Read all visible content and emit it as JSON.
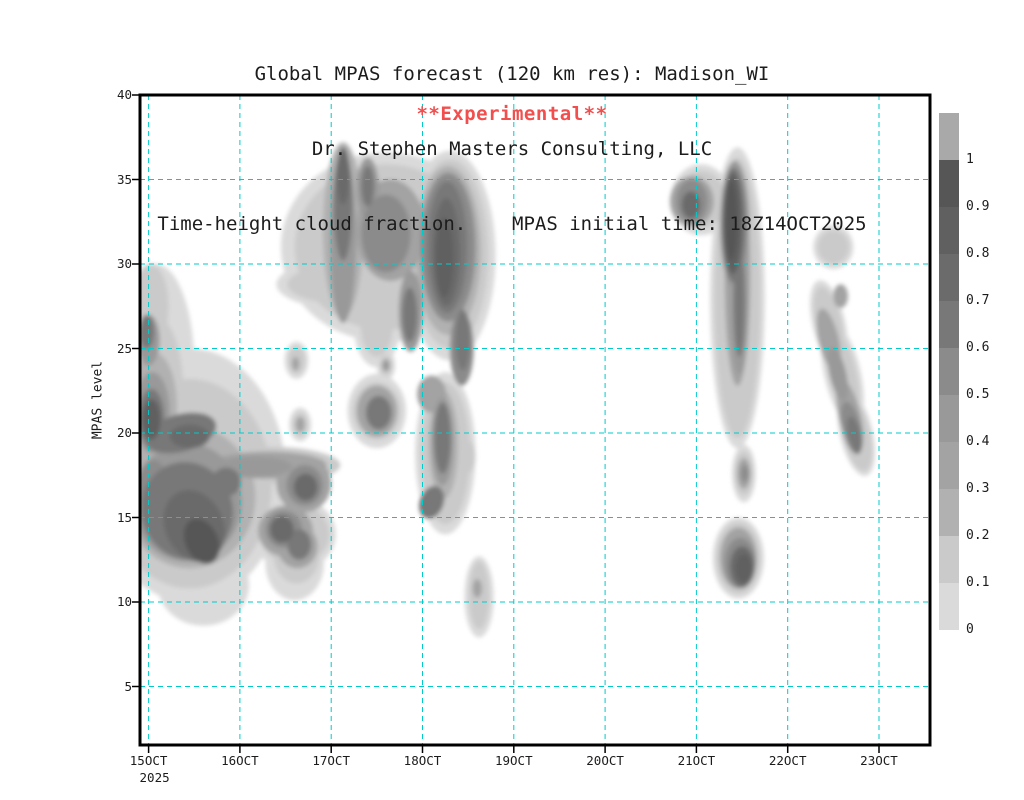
{
  "header": {
    "line1": "Global MPAS forecast (120 km res): Madison_WI",
    "line2": "Dr. Stephen Masters Consulting, LLC",
    "line3": "Time-height cloud fraction.    MPAS initial time: 18Z14OCT2025"
  },
  "annotation": {
    "text": "**Experimental**",
    "color": "#f24e4e"
  },
  "axes": {
    "y_label": "MPAS level",
    "y_ticks": [
      40,
      35,
      30,
      25,
      20,
      15,
      10,
      5
    ],
    "x_ticks": [
      "15OCT",
      "16OCT",
      "17OCT",
      "18OCT",
      "19OCT",
      "20OCT",
      "21OCT",
      "22OCT",
      "23OCT"
    ],
    "x_year": "2025",
    "grid_color": "#00cbcb",
    "frame_color": "#000000",
    "text_color": "#1c1c1c"
  },
  "colorbar": {
    "labels": [
      "0",
      "0.1",
      "0.2",
      "0.3",
      "0.4",
      "0.5",
      "0.6",
      "0.7",
      "0.8",
      "0.9",
      "1"
    ],
    "segment_colors": [
      "#dadada",
      "#cacaca",
      "#b1b1b1",
      "#a3a3a3",
      "#999999",
      "#8b8b8b",
      "#787878",
      "#6b6b6b",
      "#606060",
      "#565656",
      "#a9a9a9"
    ]
  },
  "chart_data": {
    "type": "heatmap",
    "quantity": "cloud fraction",
    "title": "Global MPAS forecast (120 km res): Madison_WI",
    "ylabel": "MPAS level",
    "ylim": [
      1.5,
      40
    ],
    "xlim_days_since_15OCT": [
      -0.1,
      8.56
    ],
    "contour_levels": [
      0,
      0.1,
      0.2,
      0.3,
      0.4,
      0.5,
      0.6,
      0.7,
      0.8,
      0.9,
      1
    ],
    "feature_format": [
      "t_days_since_15OCT00Z",
      "mpas_level",
      "radius_t_days",
      "radius_levels",
      "cloud_fraction",
      "rotation_deg"
    ],
    "features": [
      [
        0.45,
        17.5,
        1.05,
        7.5,
        0.05
      ],
      [
        0.08,
        24,
        0.42,
        6,
        0.05
      ],
      [
        0.6,
        11,
        0.5,
        2.4,
        0.05
      ],
      [
        1.6,
        14,
        0.45,
        2.2,
        0.05
      ],
      [
        1.6,
        12.3,
        0.32,
        2.2,
        0.05
      ],
      [
        1.62,
        24.3,
        0.13,
        1.1,
        0.05
      ],
      [
        1.66,
        20.5,
        0.12,
        1,
        0.05
      ],
      [
        2.2,
        28.8,
        0.8,
        1.5,
        0.05
      ],
      [
        2.5,
        26.3,
        0.25,
        2.4,
        0.05
      ],
      [
        2.6,
        31,
        1.15,
        5.6,
        0.05
      ],
      [
        3.3,
        30.5,
        0.5,
        6.2,
        0.05
      ],
      [
        3.25,
        18.8,
        0.33,
        4.8,
        0.05
      ],
      [
        3.62,
        10.3,
        0.16,
        2.4,
        0.05
      ],
      [
        2.6,
        24,
        0.1,
        0.9,
        0.05
      ],
      [
        2.5,
        21.3,
        0.32,
        2.2,
        0.05
      ],
      [
        6.45,
        28,
        0.3,
        8.9,
        0.05
      ],
      [
        6.05,
        33.8,
        0.33,
        2.1,
        0.05
      ],
      [
        6.52,
        17.6,
        0.13,
        1.7,
        0.05
      ],
      [
        6.46,
        12.6,
        0.28,
        2.4,
        0.05
      ],
      [
        7.5,
        31,
        0.22,
        1.3,
        0.05
      ],
      [
        7.45,
        26.5,
        0.18,
        2.6,
        0.05,
        -13
      ],
      [
        7.6,
        23.5,
        0.2,
        3.2,
        0.05,
        -13
      ],
      [
        7.75,
        20,
        0.18,
        2.6,
        0.05,
        -13
      ],
      [
        0.45,
        17,
        0.9,
        6.2,
        0.13
      ],
      [
        0.06,
        22.5,
        0.32,
        4.5,
        0.13
      ],
      [
        0.02,
        27.5,
        0.2,
        2.5,
        0.13
      ],
      [
        1.3,
        18.1,
        0.8,
        1.1,
        0.13
      ],
      [
        1.6,
        14,
        0.38,
        1.8,
        0.13
      ],
      [
        1.62,
        12.8,
        0.25,
        1.7,
        0.13
      ],
      [
        1.62,
        24.3,
        0.09,
        0.8,
        0.15
      ],
      [
        1.66,
        20.5,
        0.08,
        0.7,
        0.15
      ],
      [
        2.2,
        28.8,
        0.68,
        1.2,
        0.13
      ],
      [
        2.5,
        26.5,
        0.18,
        2,
        0.13
      ],
      [
        2.6,
        31,
        1,
        4.9,
        0.13
      ],
      [
        3.3,
        30.6,
        0.42,
        5.6,
        0.13
      ],
      [
        3.25,
        18.8,
        0.27,
        4.2,
        0.13
      ],
      [
        3.42,
        18.6,
        0.16,
        1.2,
        0.13
      ],
      [
        3.62,
        10.4,
        0.11,
        2,
        0.13
      ],
      [
        2.6,
        24,
        0.07,
        0.6,
        0.15
      ],
      [
        2.5,
        21.3,
        0.26,
        1.7,
        0.13
      ],
      [
        6.45,
        28,
        0.25,
        8.3,
        0.13
      ],
      [
        6.05,
        33.8,
        0.27,
        1.7,
        0.13
      ],
      [
        6.52,
        17.6,
        0.1,
        1.3,
        0.13
      ],
      [
        6.46,
        12.6,
        0.24,
        2.1,
        0.13
      ],
      [
        7.5,
        31,
        0.17,
        1,
        0.13
      ],
      [
        7.45,
        26.5,
        0.14,
        2.2,
        0.13,
        -13
      ],
      [
        7.6,
        23.5,
        0.15,
        2.8,
        0.13,
        -13
      ],
      [
        7.75,
        20,
        0.15,
        2.3,
        0.13,
        -13
      ],
      [
        2.13,
        32,
        0.22,
        5.2,
        0.25
      ],
      [
        0.05,
        21.6,
        0.26,
        3.2,
        0.25
      ],
      [
        0.45,
        16.2,
        0.72,
        4.2,
        0.25
      ],
      [
        1.3,
        18.1,
        0.65,
        0.8,
        0.3
      ],
      [
        1.7,
        17,
        0.3,
        1.7,
        0.3
      ],
      [
        1.5,
        14.2,
        0.3,
        1.5,
        0.3
      ],
      [
        1.63,
        13.3,
        0.22,
        1.3,
        0.3
      ],
      [
        1.61,
        24.1,
        0.04,
        0.4,
        0.3
      ],
      [
        1.66,
        20.5,
        0.05,
        0.45,
        0.35
      ],
      [
        2.65,
        32,
        0.38,
        3,
        0.3
      ],
      [
        3.28,
        30.8,
        0.36,
        5,
        0.25
      ],
      [
        3.23,
        19.3,
        0.16,
        3.2,
        0.25
      ],
      [
        3.1,
        22.3,
        0.16,
        1.1,
        0.35
      ],
      [
        3.6,
        10.8,
        0.05,
        0.55,
        0.3
      ],
      [
        2.6,
        24,
        0.04,
        0.35,
        0.4
      ],
      [
        2.5,
        21.3,
        0.22,
        1.5,
        0.35
      ],
      [
        6.45,
        29.3,
        0.14,
        6.5,
        0.3
      ],
      [
        6.52,
        17.6,
        0.07,
        0.9,
        0.35
      ],
      [
        6.46,
        12.6,
        0.2,
        1.8,
        0.3
      ],
      [
        7.45,
        25.5,
        0.11,
        1.9,
        0.3,
        -13
      ],
      [
        7.68,
        21,
        0.12,
        2.2,
        0.3,
        -13
      ],
      [
        7.58,
        28.1,
        0.08,
        0.7,
        0.3
      ],
      [
        5.95,
        33.7,
        0.24,
        1.5,
        0.3
      ],
      [
        0.04,
        21.2,
        0.19,
        2.4,
        0.45
      ],
      [
        0,
        25.5,
        0.12,
        1.5,
        0.45
      ],
      [
        0.42,
        15.9,
        0.6,
        3.5,
        0.45
      ],
      [
        0.05,
        16.8,
        0.17,
        1.6,
        0.55
      ],
      [
        1.15,
        18,
        0.42,
        0.6,
        0.45
      ],
      [
        1.71,
        16.9,
        0.2,
        1.2,
        0.5
      ],
      [
        1.48,
        14.3,
        0.2,
        1.1,
        0.5
      ],
      [
        2.13,
        31.5,
        0.14,
        5,
        0.45
      ],
      [
        2.4,
        34.5,
        0.12,
        1.8,
        0.45
      ],
      [
        2.87,
        27.2,
        0.13,
        2.4,
        0.45
      ],
      [
        2.6,
        31.8,
        0.27,
        2.3,
        0.5
      ],
      [
        3.28,
        31,
        0.3,
        4.4,
        0.5
      ],
      [
        3.43,
        25,
        0.13,
        2.2,
        0.5
      ],
      [
        3.22,
        19.5,
        0.12,
        2.6,
        0.45
      ],
      [
        6.42,
        32.3,
        0.16,
        3.8,
        0.45
      ],
      [
        6.47,
        27.5,
        0.09,
        4,
        0.45
      ],
      [
        5.95,
        33.7,
        0.17,
        1.3,
        0.5
      ],
      [
        6.53,
        17.6,
        0.04,
        0.5,
        0.5
      ],
      [
        6.48,
        12.3,
        0.17,
        1.5,
        0.55
      ],
      [
        7.55,
        23.5,
        0.09,
        1.6,
        0.45,
        -13
      ],
      [
        7.7,
        20.3,
        0.1,
        1.6,
        0.5,
        -13
      ],
      [
        0.03,
        20.9,
        0.14,
        1.7,
        0.65
      ],
      [
        -0.02,
        26,
        0.08,
        1,
        0.6
      ],
      [
        0.35,
        20,
        0.4,
        1.1,
        0.6,
        -15
      ],
      [
        0.42,
        15.4,
        0.5,
        2.9,
        0.65,
        -20
      ],
      [
        0.85,
        17.1,
        0.16,
        0.85,
        0.65
      ],
      [
        1.72,
        16.8,
        0.13,
        0.8,
        0.7
      ],
      [
        1.46,
        14.3,
        0.13,
        0.8,
        0.7
      ],
      [
        1.65,
        13.4,
        0.13,
        0.9,
        0.6
      ],
      [
        2.13,
        33.5,
        0.1,
        3.3,
        0.6
      ],
      [
        2.4,
        34.6,
        0.07,
        1.2,
        0.6
      ],
      [
        2.86,
        27,
        0.08,
        1.6,
        0.65
      ],
      [
        3.27,
        31,
        0.22,
        3.9,
        0.65
      ],
      [
        3.44,
        25.5,
        0.08,
        1.8,
        0.6
      ],
      [
        3.22,
        19.7,
        0.09,
        2.1,
        0.6
      ],
      [
        3.1,
        15.9,
        0.13,
        1,
        0.6,
        21
      ],
      [
        2.52,
        21.2,
        0.14,
        1,
        0.65
      ],
      [
        6.41,
        32.3,
        0.13,
        3.4,
        0.65
      ],
      [
        6.47,
        27.8,
        0.06,
        3.3,
        0.6
      ],
      [
        5.94,
        33.5,
        0.1,
        0.8,
        0.7
      ],
      [
        6.5,
        12.1,
        0.13,
        1.2,
        0.7
      ],
      [
        7.73,
        19.9,
        0.07,
        1.1,
        0.6,
        -13
      ],
      [
        0.03,
        20.8,
        0.1,
        1.2,
        0.82
      ],
      [
        0.45,
        19.8,
        0.22,
        0.7,
        0.75
      ],
      [
        0.5,
        14.5,
        0.32,
        2.2,
        0.78,
        -25
      ],
      [
        0.58,
        13.6,
        0.18,
        1.4,
        0.9,
        -25
      ],
      [
        2.13,
        35.2,
        0.07,
        1.7,
        0.75
      ],
      [
        3.26,
        30.7,
        0.15,
        3.2,
        0.78
      ],
      [
        3.24,
        30.4,
        0.1,
        2.4,
        0.85
      ],
      [
        6.4,
        32.4,
        0.1,
        3,
        0.8
      ],
      [
        6.38,
        32.6,
        0.07,
        2.4,
        0.9
      ],
      [
        6.52,
        12,
        0.09,
        0.85,
        0.85
      ]
    ]
  }
}
